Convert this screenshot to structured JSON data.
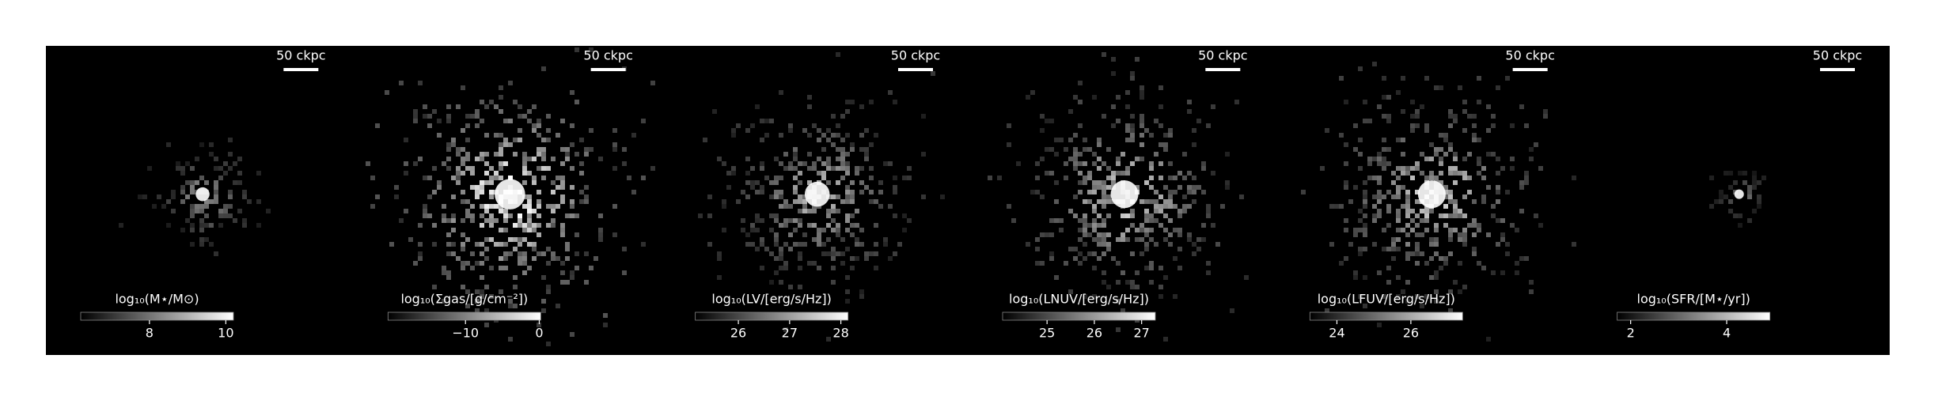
{
  "panels": [
    {
      "scale_label": "50 ckpc",
      "colorbar": {
        "label": "log₁₀(M⋆/M⊙)",
        "clim": [
          6.2,
          10.2
        ],
        "ticks": [
          8,
          10
        ]
      }
    },
    {
      "scale_label": "50 ckpc",
      "colorbar": {
        "label": "log₁₀(Σgas/[g/cm⁻²])",
        "clim": [
          -20.5,
          0.2
        ],
        "ticks": [
          {
            "value": -10,
            "label": "−10"
          },
          0
        ]
      }
    },
    {
      "scale_label": "50 ckpc",
      "colorbar": {
        "label": "log₁₀(LV/[erg/s/Hz])",
        "clim": [
          25.16,
          28.14
        ],
        "ticks": [
          26,
          27,
          28
        ]
      }
    },
    {
      "scale_label": "50 ckpc",
      "colorbar": {
        "label": "log₁₀(LNUV/[erg/s/Hz])",
        "clim": [
          24.06,
          27.29
        ],
        "ticks": [
          25,
          26,
          27
        ]
      }
    },
    {
      "scale_label": "50 ckpc",
      "colorbar": {
        "label": "log₁₀(LFUV/[erg/s/Hz])",
        "clim": [
          23.27,
          27.4
        ],
        "ticks": [
          24,
          26
        ]
      }
    },
    {
      "scale_label": "50 ckpc",
      "colorbar": {
        "label": "log₁₀(SFR/[M⋆/yr])",
        "clim": [
          1.72,
          4.9
        ],
        "ticks": [
          2,
          4
        ]
      }
    }
  ]
}
